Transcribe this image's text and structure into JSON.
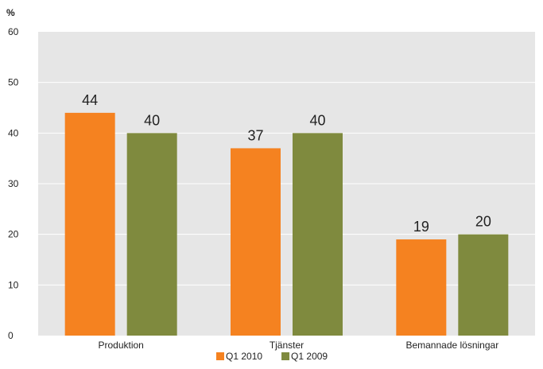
{
  "chart_data": {
    "type": "bar",
    "unit_label": "%",
    "categories": [
      "Produktion",
      "Tjänster",
      "Bemannade lösningar"
    ],
    "series": [
      {
        "name": "Q1 2010",
        "color": "#F58220",
        "values": [
          44,
          37,
          19
        ]
      },
      {
        "name": "Q1 2009",
        "color": "#7F8A3E",
        "values": [
          40,
          40,
          20
        ]
      }
    ],
    "ylim": [
      0,
      60
    ],
    "yticks": [
      0,
      10,
      20,
      30,
      40,
      50,
      60
    ],
    "grid": true,
    "plot_background": "#E6E6E6",
    "gridline_color": "#FFFFFF",
    "legend_position": "bottom-center"
  }
}
